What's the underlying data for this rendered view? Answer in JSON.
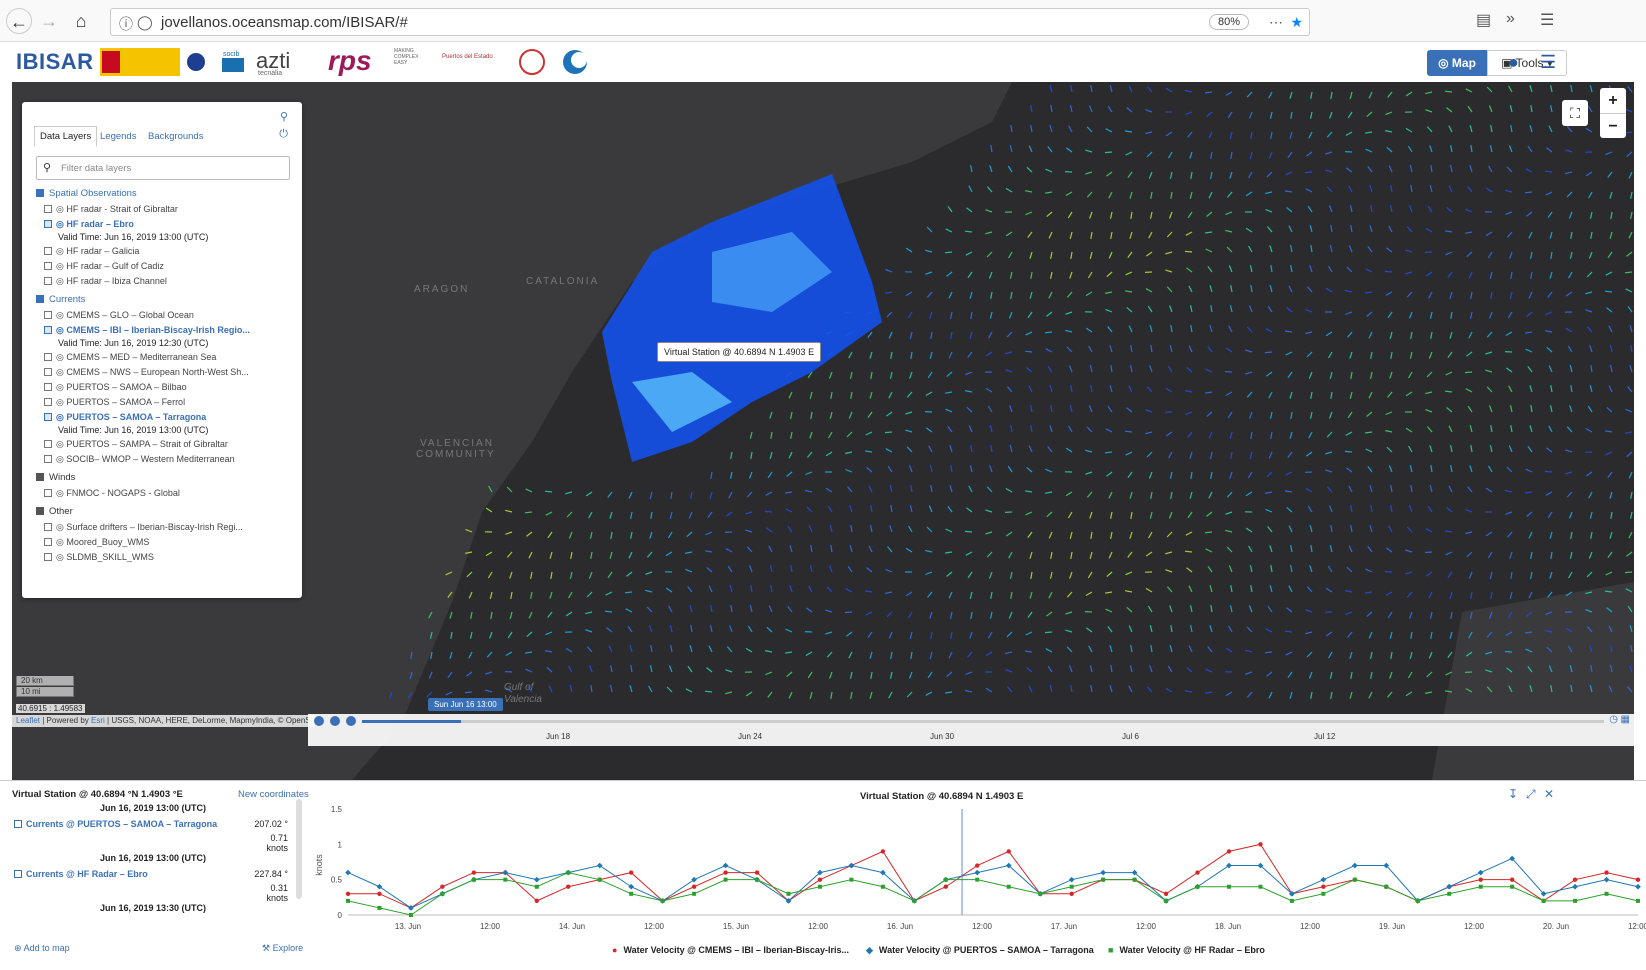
{
  "browser": {
    "url": "jovellanos.oceansmap.com/IBISAR/#",
    "zoom": "80%"
  },
  "header": {
    "brand": "IBISAR",
    "logos": [
      "GOBIERNO DE ESPAÑA",
      "azti",
      "rps",
      "Puertos del Estado",
      "socib"
    ],
    "logo_azti_text": "azti",
    "logo_azti_sub": "tecnalia",
    "logo_rps_text": "rps",
    "logo_rps_sub": "MAKING COMPLEX EASY",
    "logo_puertos_text": "Puertos del Estado",
    "logo_socib_text": "socib",
    "map_label": "Map",
    "tools_label": "Tools"
  },
  "panel": {
    "tabs": [
      "Data Layers",
      "Legends",
      "Backgrounds"
    ],
    "filter_placeholder": "Filter data layers",
    "groups": {
      "spatial": "Spatial Observations",
      "currents": "Currents",
      "winds": "Winds",
      "other": "Other"
    },
    "spatial_items": [
      "HF radar - Strait of Gibraltar",
      "HF radar – Ebro",
      "HF radar – Galicia",
      "HF radar – Gulf of Cadiz",
      "HF radar – Ibiza Channel"
    ],
    "spatial_valid": "Valid Time: Jun 16, 2019 13:00 (UTC)",
    "currents_items": [
      "CMEMS – GLO – Global Ocean",
      "CMEMS – IBI – Iberian-Biscay-Irish Regio...",
      "CMEMS – MED – Mediterranean Sea",
      "CMEMS – NWS – European North-West Sh...",
      "PUERTOS – SAMOA – Bilbao",
      "PUERTOS – SAMOA – Ferrol",
      "PUERTOS – SAMOA – Tarragona",
      "PUERTOS – SAMPA – Strait of Gibraltar",
      "SOCIB– WMOP – Western Mediterranean"
    ],
    "currents_valid_ibi": "Valid Time: Jun 16, 2019 12:30 (UTC)",
    "currents_valid_tarragona": "Valid Time: Jun 16, 2019 13:00 (UTC)",
    "winds_items": [
      "FNMOC - NOGAPS - Global"
    ],
    "other_items": [
      "Surface drifters – Iberian-Biscay-Irish Regi...",
      "Moored_Buoy_WMS",
      "SLDMB_SKILL_WMS"
    ]
  },
  "map": {
    "labels": {
      "aragon": "ARAGON",
      "catalonia": "CATALONIA",
      "valencian": "VALENCIAN",
      "community": "COMMUNITY",
      "gulf": "Gulf of",
      "valencia": "Valencia"
    },
    "tooltip": "Virtual Station @ 40.6894 N 1.4903 E",
    "scale_km": "20 km",
    "scale_mi": "10 mi",
    "coords": "40.6915 : 1.49583",
    "attribution_leaflet": "Leaflet",
    "attribution_powered": " | Powered by ",
    "attribution_esri": "Esri",
    "attribution_rest": " | USGS, NOAA, HERE, DeLorme, MapmyIndia, © OpenS",
    "time_bubble": "Sun Jun 16 13:00",
    "timeline_ticks": [
      "Jun 18",
      "Jun 24",
      "Jun 30",
      "Jul 6",
      "Jul 12"
    ]
  },
  "bottom": {
    "station_title": "Virtual Station @ 40.6894 °N 1.4903 °E",
    "new_coords": "New coordinates",
    "date1": "Jun 16, 2019 13:00 (UTC)",
    "series1": "Currents @ PUERTOS – SAMOA – Tarragona",
    "dir1": "207.02 °",
    "spd1": "0.71 knots",
    "date2": "Jun 16, 2019 13:00 (UTC)",
    "series2": "Currents @ HF Radar – Ebro",
    "dir2": "227.84 °",
    "spd2": "0.31 knots",
    "date3": "Jun 16, 2019 13:30 (UTC)",
    "add_to_map": "Add to map",
    "explore": "Explore",
    "chart_title": "Virtual Station @ 40.6894 N 1.4903 E"
  },
  "chart_data": {
    "type": "line",
    "title": "Virtual Station @ 40.6894 N 1.4903 E",
    "ylabel": "knots",
    "ylim": [
      0,
      1.5
    ],
    "yticks": [
      0,
      0.5,
      1,
      1.5
    ],
    "xticks": [
      "13. Jun",
      "12:00",
      "14. Jun",
      "12:00",
      "15. Jun",
      "12:00",
      "16. Jun",
      "12:00",
      "17. Jun",
      "12:00",
      "18. Jun",
      "12:00",
      "19. Jun",
      "12:00",
      "20. Jun",
      "12:00"
    ],
    "grid": false,
    "legend": "bottom",
    "series": [
      {
        "name": "Water Velocity @ CMEMS – IBI – Iberian-Biscay-Iris...",
        "color": "#d62728",
        "values": [
          0.3,
          0.3,
          0.1,
          0.4,
          0.6,
          0.6,
          0.2,
          0.4,
          0.5,
          0.6,
          0.2,
          0.4,
          0.6,
          0.6,
          0.2,
          0.5,
          0.7,
          0.9,
          0.2,
          0.4,
          0.7,
          0.9,
          0.3,
          0.3,
          0.5,
          0.5,
          0.3,
          0.6,
          0.9,
          1.0,
          0.3,
          0.4,
          0.5,
          0.4,
          0.2,
          0.4,
          0.5,
          0.5,
          0.2,
          0.5,
          0.6,
          0.5
        ]
      },
      {
        "name": "Water Velocity @ PUERTOS – SAMOA – Tarragona",
        "color": "#1f77b4",
        "values": [
          0.6,
          0.4,
          0.1,
          0.3,
          0.5,
          0.6,
          0.5,
          0.6,
          0.7,
          0.4,
          0.2,
          0.5,
          0.7,
          0.5,
          0.2,
          0.6,
          0.7,
          0.6,
          0.2,
          0.5,
          0.6,
          0.7,
          0.3,
          0.5,
          0.6,
          0.6,
          0.2,
          0.4,
          0.7,
          0.7,
          0.3,
          0.5,
          0.7,
          0.7,
          0.2,
          0.4,
          0.6,
          0.8,
          0.3,
          0.4,
          0.5,
          0.4
        ]
      },
      {
        "name": "Water Velocity @ HF Radar – Ebro",
        "color": "#2ca02c",
        "values": [
          0.2,
          0.1,
          0.0,
          0.3,
          0.5,
          0.5,
          0.4,
          0.6,
          0.5,
          0.3,
          0.2,
          0.3,
          0.5,
          0.5,
          0.3,
          0.4,
          0.5,
          0.4,
          0.2,
          0.5,
          0.5,
          0.4,
          0.3,
          0.4,
          0.5,
          0.5,
          0.2,
          0.4,
          0.4,
          0.4,
          0.2,
          0.3,
          0.5,
          0.4,
          0.2,
          0.3,
          0.4,
          0.4,
          0.2,
          0.2,
          0.3,
          0.2
        ]
      }
    ]
  }
}
